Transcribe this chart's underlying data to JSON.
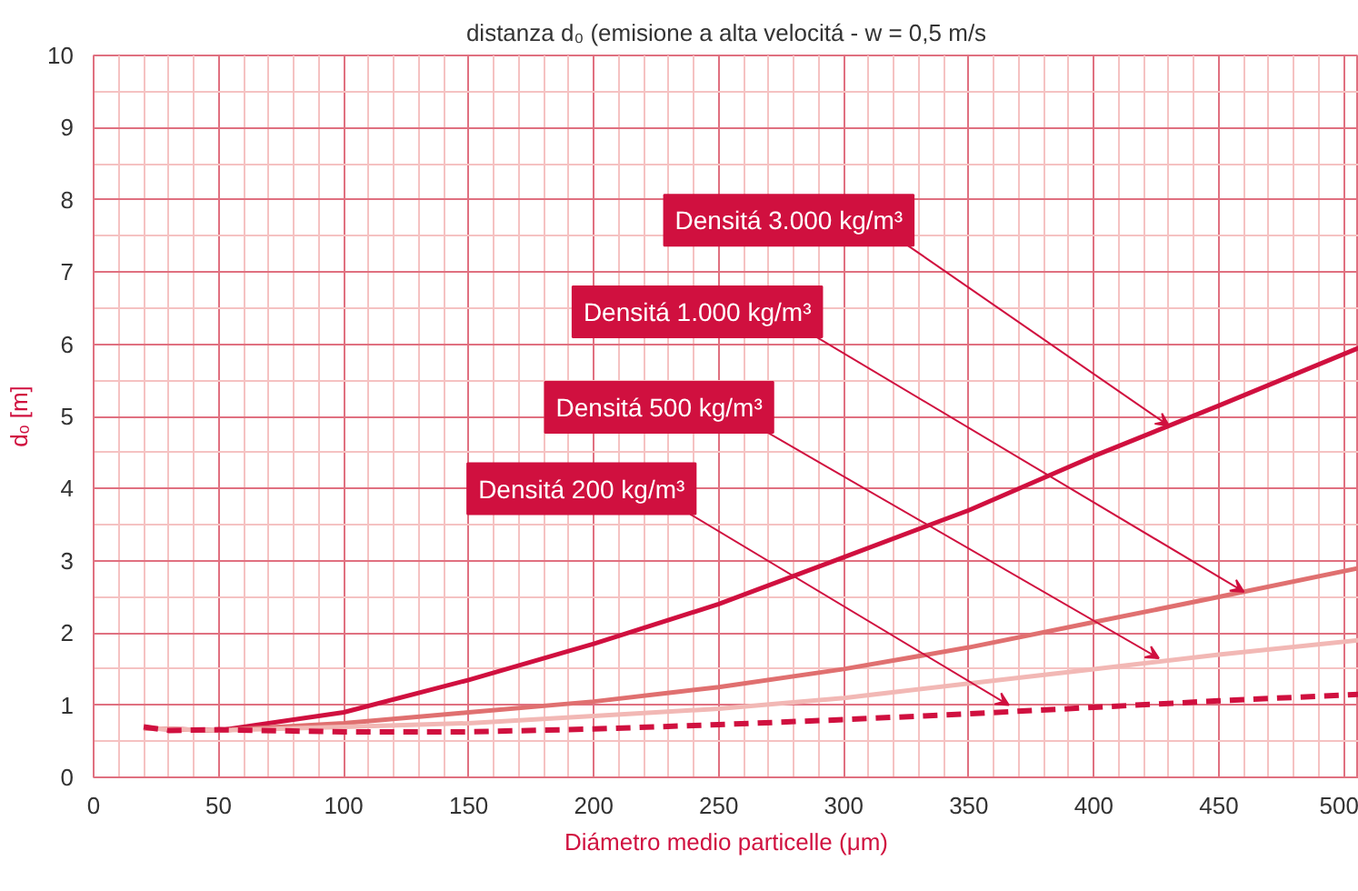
{
  "chart_data": {
    "type": "line",
    "title": "distanza d₀ (emisione a alta velocitá - w = 0,5 m/s",
    "xlabel": "Diámetro medio particelle (μm)",
    "ylabel": "dₒ [m]",
    "xlim": [
      0,
      506
    ],
    "ylim": [
      0,
      10
    ],
    "xticks": [
      0,
      50,
      100,
      150,
      200,
      250,
      300,
      350,
      400,
      450,
      500
    ],
    "yticks": [
      0,
      1,
      2,
      3,
      4,
      5,
      6,
      7,
      8,
      9,
      10
    ],
    "grid": true,
    "series": [
      {
        "color": "#d0103f",
        "line_style": "solid",
        "x": [
          20,
          50,
          100,
          150,
          200,
          250,
          300,
          350,
          400,
          450,
          506
        ],
        "values": [
          0.68,
          0.65,
          0.9,
          1.35,
          1.85,
          2.4,
          3.05,
          3.7,
          4.45,
          5.15,
          5.95
        ]
      },
      {
        "color": "#e07070",
        "line_style": "solid",
        "x": [
          20,
          50,
          100,
          150,
          200,
          250,
          300,
          350,
          400,
          450,
          506
        ],
        "values": [
          0.68,
          0.65,
          0.75,
          0.9,
          1.05,
          1.25,
          1.5,
          1.8,
          2.15,
          2.5,
          2.9
        ]
      },
      {
        "color": "#f2b8b5",
        "line_style": "solid",
        "x": [
          20,
          50,
          100,
          150,
          200,
          250,
          300,
          350,
          400,
          450,
          506
        ],
        "values": [
          0.68,
          0.65,
          0.7,
          0.75,
          0.85,
          0.95,
          1.1,
          1.3,
          1.5,
          1.7,
          1.9
        ]
      },
      {
        "color": "#d0103f",
        "line_style": "dashed",
        "x": [
          20,
          30,
          50,
          100,
          150,
          200,
          250,
          300,
          350,
          400,
          450,
          506
        ],
        "values": [
          0.7,
          0.65,
          0.66,
          0.63,
          0.63,
          0.67,
          0.73,
          0.8,
          0.88,
          0.97,
          1.06,
          1.15
        ]
      }
    ],
    "annotations": [
      {
        "text": "Densitá 3.000 kg/m³",
        "x": 430,
        "y": 4.87
      },
      {
        "text": "Densitá 1.000 kg/m³",
        "x": 460,
        "y": 2.57
      },
      {
        "text": "Densitá 500 kg/m³",
        "x": 426,
        "y": 1.65
      },
      {
        "text": "Densitá 200 kg/m³",
        "x": 366,
        "y": 1.0
      }
    ]
  }
}
